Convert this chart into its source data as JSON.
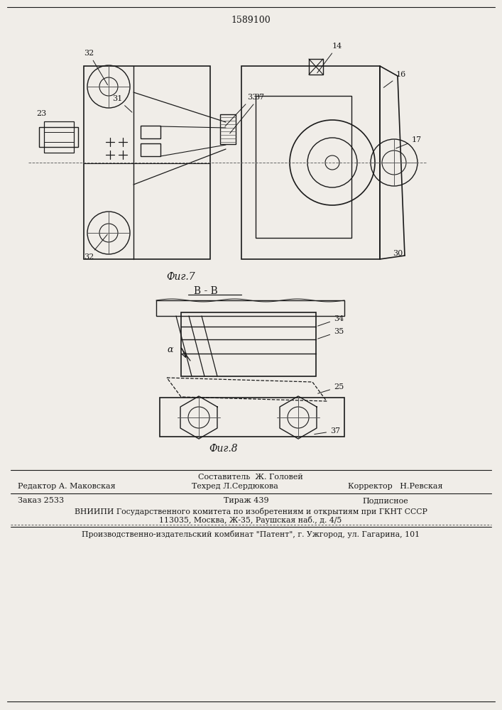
{
  "patent_number": "1589100",
  "fig7_label": "Фиг.7",
  "fig8_label": "Фиг.8",
  "section_label": "В - В",
  "bg_color": "#f0ede8",
  "line_color": "#1a1a1a",
  "footer_line1_center": "Составитель  Ж. Головей",
  "footer_line1_left": "Редактор А. Маковская",
  "footer_line1_center2": "Техред Л.Сердюкова",
  "footer_line1_right": "Корректор   Н.Ревская",
  "footer_line2_left": "Заказ 2533",
  "footer_line2_center": "Тираж 439",
  "footer_line2_right": "Подписное",
  "footer_line3": "ВНИИПИ Государственного комитета по изобретениям и открытиям при ГКНТ СССР",
  "footer_line4": "113035, Москва, Ж-35, Раушская наб., д. 4/5",
  "footer_line5": "Производственно-издательский комбинат \"Патент\", г. Ужгород, ул. Гагарина, 101"
}
